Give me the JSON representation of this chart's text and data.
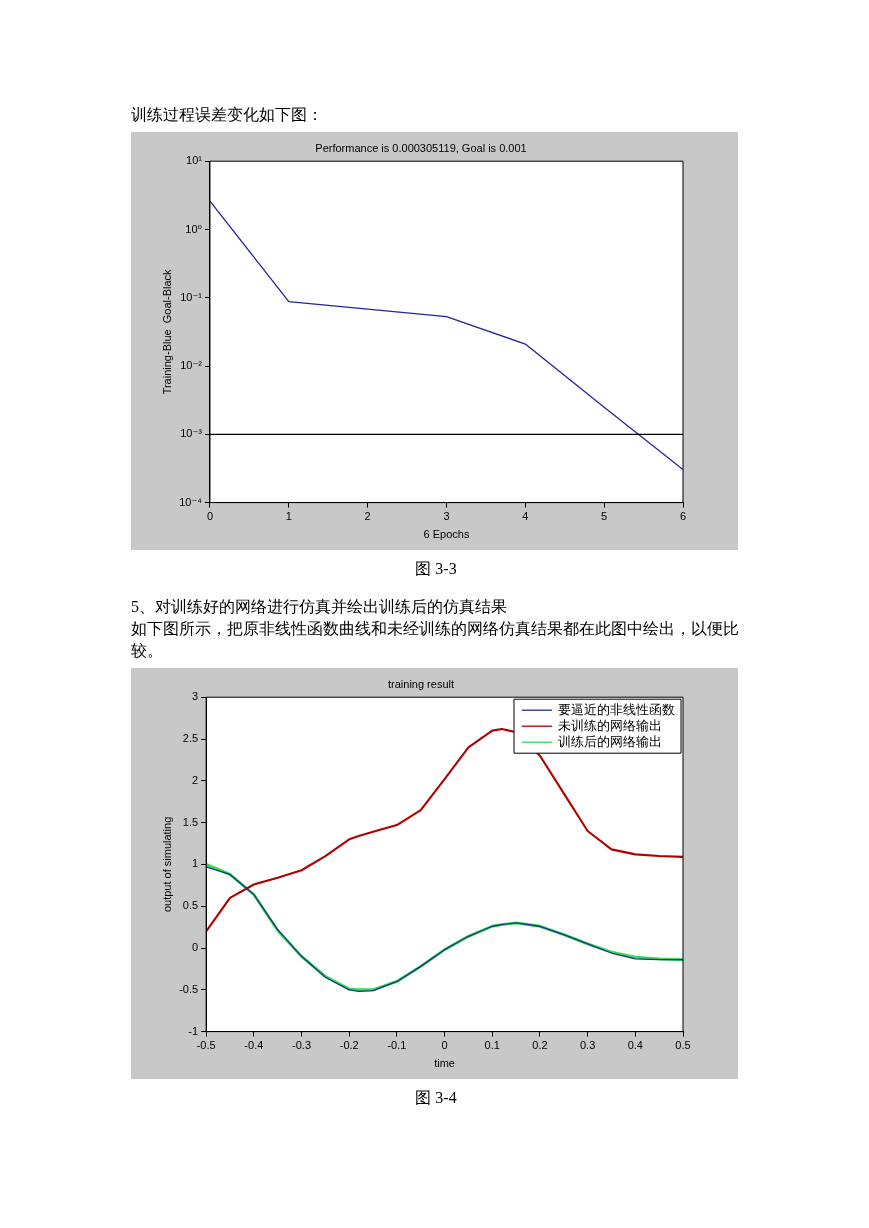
{
  "chart_data": [
    {
      "type": "line",
      "title": "Performance is 0.000305119, Goal is 0.001",
      "xlabel": "6 Epochs",
      "ylabel": "Training-Blue  Goal-Black",
      "log": "y",
      "marker": "none",
      "x": [
        0,
        1,
        2,
        3,
        4,
        5,
        6
      ],
      "series": [
        {
          "color": "#2323a0",
          "values": [
            2.6,
            0.088,
            0.068,
            0.053,
            0.021,
            0.0025,
            0.000305
          ]
        }
      ],
      "xlim": [
        0,
        6
      ],
      "xticks": [
        0,
        1,
        2,
        3,
        4,
        5,
        6
      ],
      "ylim": [
        0.0001,
        10
      ],
      "yticks": [
        {
          "value": 0.0001,
          "label": "10⁻⁴"
        },
        {
          "value": 0.001,
          "label": "10⁻³"
        },
        {
          "value": 0.01,
          "label": "10⁻²"
        },
        {
          "value": 0.1,
          "label": "10⁻¹"
        },
        {
          "value": 1,
          "label": "10⁰"
        },
        {
          "value": 10,
          "label": "10¹"
        }
      ],
      "ref_lines": [
        {
          "axis": "y",
          "value": 0.001,
          "color": "#000000"
        }
      ],
      "annotations": [
        "训练过程误差变化如下图：",
        "图 3-3"
      ]
    },
    {
      "type": "line",
      "title": "training result",
      "xlabel": "time",
      "ylabel": "output of simulating",
      "marker": "none",
      "legend": "top right",
      "x": [
        -0.5,
        -0.45,
        -0.4,
        -0.35,
        -0.3,
        -0.25,
        -0.2,
        -0.18,
        -0.15,
        -0.1,
        -0.05,
        0,
        0.05,
        0.1,
        0.12,
        0.15,
        0.2,
        0.25,
        0.3,
        0.35,
        0.4,
        0.45,
        0.5
      ],
      "series": [
        {
          "name": "要逼近的非线性函数",
          "color": "#1f2f8f",
          "values": [
            0.97,
            0.88,
            0.64,
            0.22,
            -0.1,
            -0.35,
            -0.5,
            -0.52,
            -0.51,
            -0.4,
            -0.22,
            -0.02,
            0.14,
            0.26,
            0.28,
            0.3,
            0.26,
            0.16,
            0.05,
            -0.06,
            -0.13,
            -0.14,
            -0.14
          ]
        },
        {
          "name": "未训练的网络输出",
          "color": "#b00000",
          "values": [
            0.2,
            0.6,
            0.76,
            0.84,
            0.93,
            1.1,
            1.3,
            1.34,
            1.39,
            1.47,
            1.65,
            2.02,
            2.4,
            2.6,
            2.62,
            2.58,
            2.3,
            1.85,
            1.4,
            1.18,
            1.12,
            1.1,
            1.09
          ]
        },
        {
          "name": "训练后的网络输出",
          "color": "#33dd55",
          "values": [
            1.0,
            0.88,
            0.64,
            0.21,
            -0.1,
            -0.34,
            -0.49,
            -0.5,
            -0.5,
            -0.4,
            -0.22,
            -0.02,
            0.14,
            0.26,
            0.28,
            0.3,
            0.26,
            0.16,
            0.05,
            -0.05,
            -0.11,
            -0.13,
            -0.14
          ]
        }
      ],
      "xlim": [
        -0.5,
        0.5
      ],
      "xticks": [
        -0.5,
        -0.4,
        -0.3,
        -0.2,
        -0.1,
        0,
        0.1,
        0.2,
        0.3,
        0.4,
        0.5
      ],
      "ylim": [
        -1,
        3
      ],
      "yticks": [
        -1,
        -0.5,
        0,
        0.5,
        1,
        1.5,
        2,
        2.5,
        3
      ],
      "annotations": [
        "5、对训练好的网络进行仿真并绘出训练后的仿真结果",
        "如下图所示，把原非线性函数曲线和未经训练的网络仿真结果都在此图中绘出，以便比较。",
        "图 3-4"
      ]
    }
  ]
}
